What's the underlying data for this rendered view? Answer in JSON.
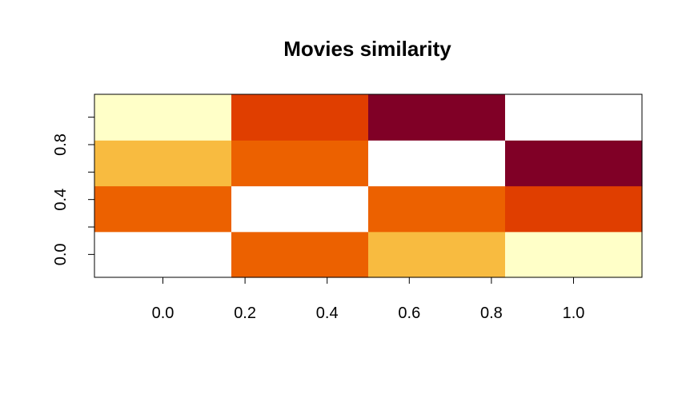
{
  "chart_data": {
    "type": "heatmap",
    "title": "Movies similarity",
    "xlabel": "",
    "ylabel": "",
    "x_ticks": [
      "0.0",
      "0.2",
      "0.4",
      "0.6",
      "0.8",
      "1.0"
    ],
    "y_ticks": [
      "0.0",
      "0.4",
      "0.8"
    ],
    "xlim": [
      -0.1667,
      1.1667
    ],
    "ylim": [
      -0.1667,
      1.1667
    ],
    "n_cols": 4,
    "n_rows": 4,
    "rows_bottom_to_top": [
      [
        null,
        3,
        4,
        5
      ],
      [
        3,
        null,
        3,
        2
      ],
      [
        4,
        3,
        null,
        0
      ],
      [
        5,
        2,
        0,
        null
      ]
    ],
    "palette": [
      "#800026",
      "#E84012",
      "#E03E00",
      "#EC6100",
      "#F8BB40",
      "#FFFFC8"
    ],
    "missing_color": "#FFFFFF"
  }
}
